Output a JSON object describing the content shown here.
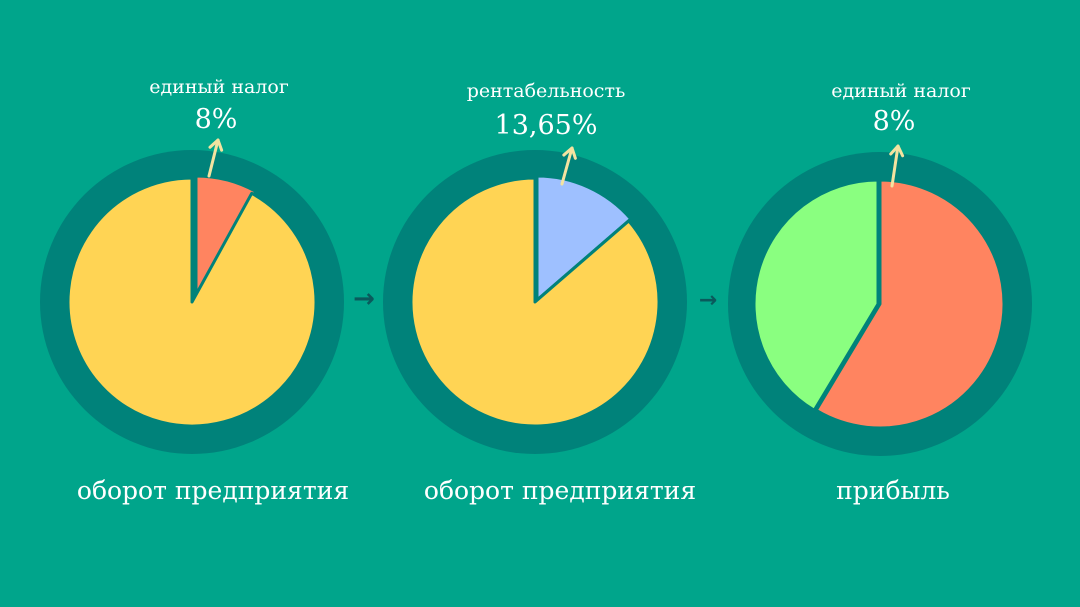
{
  "colors": {
    "background": "#00a58b",
    "ring": "#00827a",
    "turnover": "#ffd454",
    "tax": "#ff8460",
    "profitability": "#9ec0ff",
    "remainder": "#8aff80",
    "callout_arrow": "#f3e3a0",
    "flow_arrow": "#0a5a5c"
  },
  "chart_data": [
    {
      "type": "pie",
      "title": "",
      "caption": "оборот предприятия",
      "highlight": {
        "label": "единый налог",
        "value_label": "8%",
        "value": 8
      },
      "slices": [
        {
          "name": "",
          "value": 8,
          "color": "#ff8460"
        },
        {
          "name": "",
          "value": 92,
          "color": "#ffd454"
        }
      ]
    },
    {
      "type": "pie",
      "title": "",
      "caption": "оборот предприятия",
      "highlight": {
        "label": "рентабельность",
        "value_label": "13,65%",
        "value": 13.65
      },
      "slices": [
        {
          "name": "",
          "value": 13.65,
          "color": "#9ec0ff"
        },
        {
          "name": "",
          "value": 86.35,
          "color": "#ffd454"
        }
      ]
    },
    {
      "type": "pie",
      "title": "",
      "caption": "прибыль",
      "highlight": {
        "label": "единый налог",
        "value_label": "8%",
        "value": 8
      },
      "slices": [
        {
          "name": "",
          "value": 58.6,
          "color": "#ff8460"
        },
        {
          "name": "",
          "value": 41.4,
          "color": "#8aff80"
        }
      ]
    }
  ],
  "flow_arrows": [
    "→",
    "→"
  ]
}
